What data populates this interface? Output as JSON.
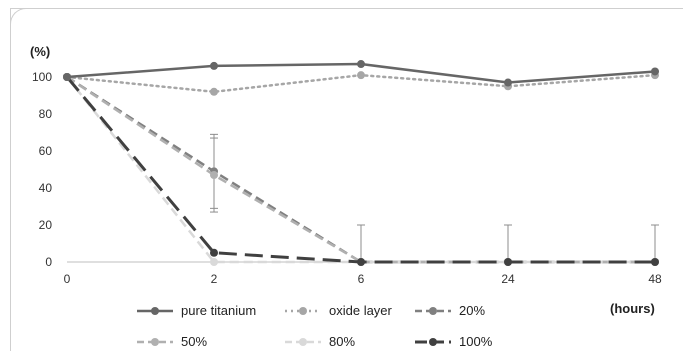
{
  "chart_data": {
    "type": "line",
    "title": "",
    "ylabel": "(%)",
    "xlabel": "(hours)",
    "categories": [
      "0",
      "2",
      "6",
      "24",
      "48"
    ],
    "yticks": [
      "0",
      "20",
      "40",
      "60",
      "80",
      "100"
    ],
    "ylim": [
      0,
      100
    ],
    "grid": false,
    "legend_position": "bottom",
    "series": [
      {
        "name": "pure titanium",
        "values": [
          100,
          106,
          107,
          97,
          103
        ],
        "color": "#666666",
        "style": "solid",
        "errors": []
      },
      {
        "name": "oxide layer",
        "values": [
          100,
          92,
          101,
          95,
          101
        ],
        "color": "#a6a6a6",
        "style": "dotted",
        "errors": []
      },
      {
        "name": "20%",
        "values": [
          100,
          49,
          0,
          0,
          0
        ],
        "color": "#808080",
        "style": "dashed",
        "errors": [
          0,
          20,
          20,
          20,
          20
        ]
      },
      {
        "name": "50%",
        "values": [
          100,
          47,
          0,
          0,
          0
        ],
        "color": "#b0b0b0",
        "style": "dashed",
        "errors": [
          0,
          20,
          0,
          0,
          0
        ]
      },
      {
        "name": "80%",
        "values": [
          100,
          0,
          0,
          0,
          0
        ],
        "color": "#d9d9d9",
        "style": "dashed",
        "errors": [
          0,
          0,
          0,
          0,
          0
        ]
      },
      {
        "name": "100%",
        "values": [
          100,
          5,
          0,
          0,
          0
        ],
        "color": "#404040",
        "style": "longdash",
        "errors": [
          0,
          0,
          0,
          0,
          0
        ]
      }
    ]
  }
}
